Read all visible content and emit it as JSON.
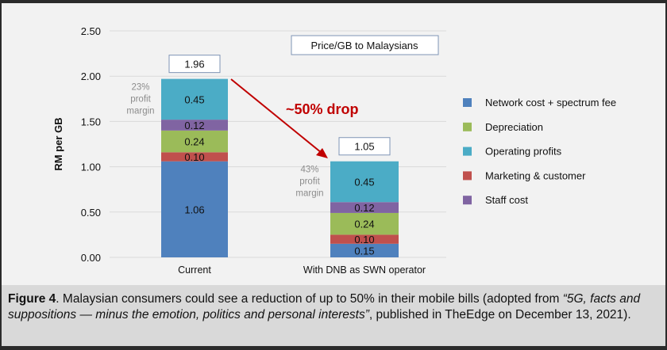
{
  "chart_data": {
    "type": "bar",
    "stacked": true,
    "title": "Price/GB to Malaysians",
    "ylabel": "RM per GB",
    "xlabel": "",
    "ylim": [
      0,
      2.5
    ],
    "yticks": [
      "0.00",
      "0.50",
      "1.00",
      "1.50",
      "2.00",
      "2.50"
    ],
    "grid": true,
    "legend_position": "right",
    "categories": [
      "Current",
      "With DNB as SWN operator"
    ],
    "series": [
      {
        "name": "Network cost + spectrum fee",
        "color": "#4f81bd",
        "values": [
          1.06,
          0.15
        ],
        "labels": [
          "1.06",
          "0.15"
        ]
      },
      {
        "name": "Marketing & customer",
        "color": "#c0504d",
        "values": [
          0.1,
          0.1
        ],
        "labels": [
          "0.10",
          "0.10"
        ]
      },
      {
        "name": "Depreciation",
        "color": "#9bbb59",
        "values": [
          0.24,
          0.24
        ],
        "labels": [
          "0.24",
          "0.24"
        ]
      },
      {
        "name": "Staff cost",
        "color": "#8064a2",
        "values": [
          0.12,
          0.12
        ],
        "labels": [
          "0.12",
          "0.12"
        ]
      },
      {
        "name": "Operating profits",
        "color": "#4bacc6",
        "values": [
          0.45,
          0.45
        ],
        "labels": [
          "0.45",
          "0.45"
        ]
      }
    ],
    "legend_order": [
      "Network cost + spectrum fee",
      "Depreciation",
      "Operating profits",
      "Marketing & customer",
      "Staff cost"
    ],
    "totals": [
      "1.96",
      "1.05"
    ],
    "margin_notes": [
      [
        "23%",
        "profit",
        "margin"
      ],
      [
        "43%",
        "profit",
        "margin"
      ]
    ],
    "annotation": "~50% drop",
    "annotation_color": "#c00000"
  },
  "caption": {
    "label": "Figure 4",
    "text1": ". Malaysian consumers could see a reduction of up to 50% in their mobile bills (adopted from ",
    "italic": "“5G, facts and suppositions — minus the emotion, politics and personal interests”",
    "text2": ", published in TheEdge on December 13, 2021)."
  }
}
